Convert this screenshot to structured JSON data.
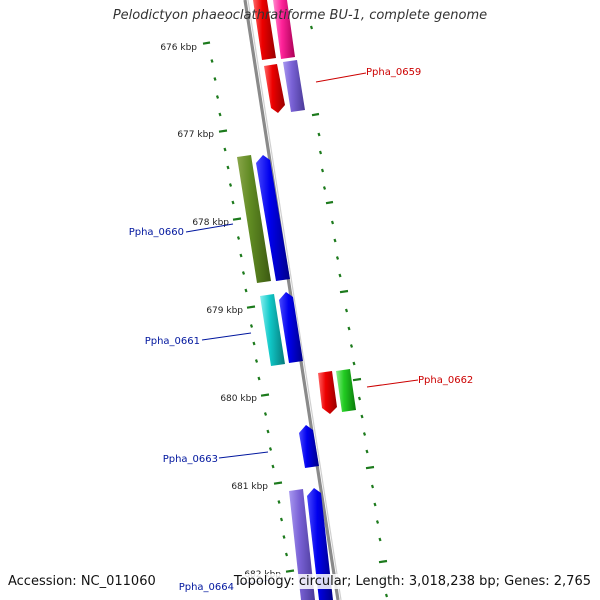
{
  "title": "Pelodictyon phaeoclathratiforme BU-1, complete genome",
  "accession": "Accession: NC_011060",
  "summary": "Topology: circular; Length: 3,018,238 bp; Genes: 2,765",
  "colors": {
    "backbone": "#888888",
    "tick": "#1c7a1c",
    "label_forward": "#cc0000",
    "label_reverse": "#00169e"
  },
  "scale_labels": [
    "676 kbp",
    "677 kbp",
    "678 kbp",
    "679 kbp",
    "680 kbp",
    "681 kbp",
    "682 kbp"
  ],
  "gene_labels": [
    "Ppha_0659",
    "Ppha_0660",
    "Ppha_0661",
    "Ppha_0662",
    "Ppha_0663",
    "Ppha_0664"
  ]
}
